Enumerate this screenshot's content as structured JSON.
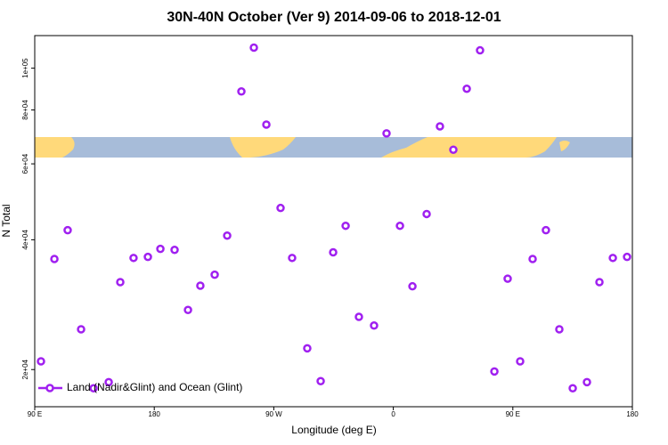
{
  "chart_data": {
    "type": "scatter",
    "title": "30N-40N October (Ver 9)   2014-09-06 to 2018-12-01",
    "x_label": "Longitude (deg E)",
    "y_label": "N Total",
    "xlim": [
      90,
      540
    ],
    "xticks": [
      {
        "value": 90,
        "label": "90 E"
      },
      180,
      {
        "value": 270,
        "label": "90 W"
      },
      {
        "value": 360,
        "label": "0"
      },
      {
        "value": 450,
        "label": "90 E"
      },
      {
        "value": 540,
        "label": "180"
      }
    ],
    "ylim": [
      16400,
      119000
    ],
    "ylog": true,
    "yticks": [
      {
        "value": 20000,
        "label": "2e+04"
      },
      {
        "value": 40000,
        "label": "4e+04"
      },
      {
        "value": 60000,
        "label": "6e+04"
      },
      {
        "value": 80000,
        "label": "8e+04"
      },
      {
        "value": 100000,
        "label": "1e+05"
      }
    ],
    "legend": "bottom-left",
    "x": [
      94.7,
      104.8,
      114.8,
      124.9,
      134.3,
      145.7,
      154.4,
      164.4,
      175.2,
      184.6,
      195.3,
      205.4,
      214.7,
      225.5,
      234.9,
      245.6,
      255.0,
      264.4,
      275.1,
      283.8,
      295.2,
      305.3,
      314.7,
      324.1,
      334.1,
      345.5,
      354.9,
      365.0,
      374.4,
      385.1,
      395.1,
      405.2,
      415.3,
      425.3,
      436.1,
      446.1,
      455.5,
      464.9,
      474.9,
      485.0,
      495.1,
      505.8,
      515.2,
      525.3,
      536.0
    ],
    "series": [
      {
        "name": "Land (Nadir&Glint) and Ocean (Glint)",
        "color": "#a020f0",
        "values": [
          20900,
          36100,
          42100,
          24800,
          18100,
          18700,
          31900,
          36300,
          36500,
          38100,
          37900,
          27500,
          31300,
          33200,
          40900,
          88300,
          111600,
          74000,
          47400,
          36300,
          22400,
          18800,
          37400,
          43100,
          26500,
          25300,
          70600,
          43100,
          31200,
          45900,
          73300,
          64700,
          89600,
          110000,
          19800,
          32500,
          20900,
          36100,
          42100,
          24800,
          18100,
          18700,
          31900,
          36300,
          36500
        ]
      }
    ]
  }
}
